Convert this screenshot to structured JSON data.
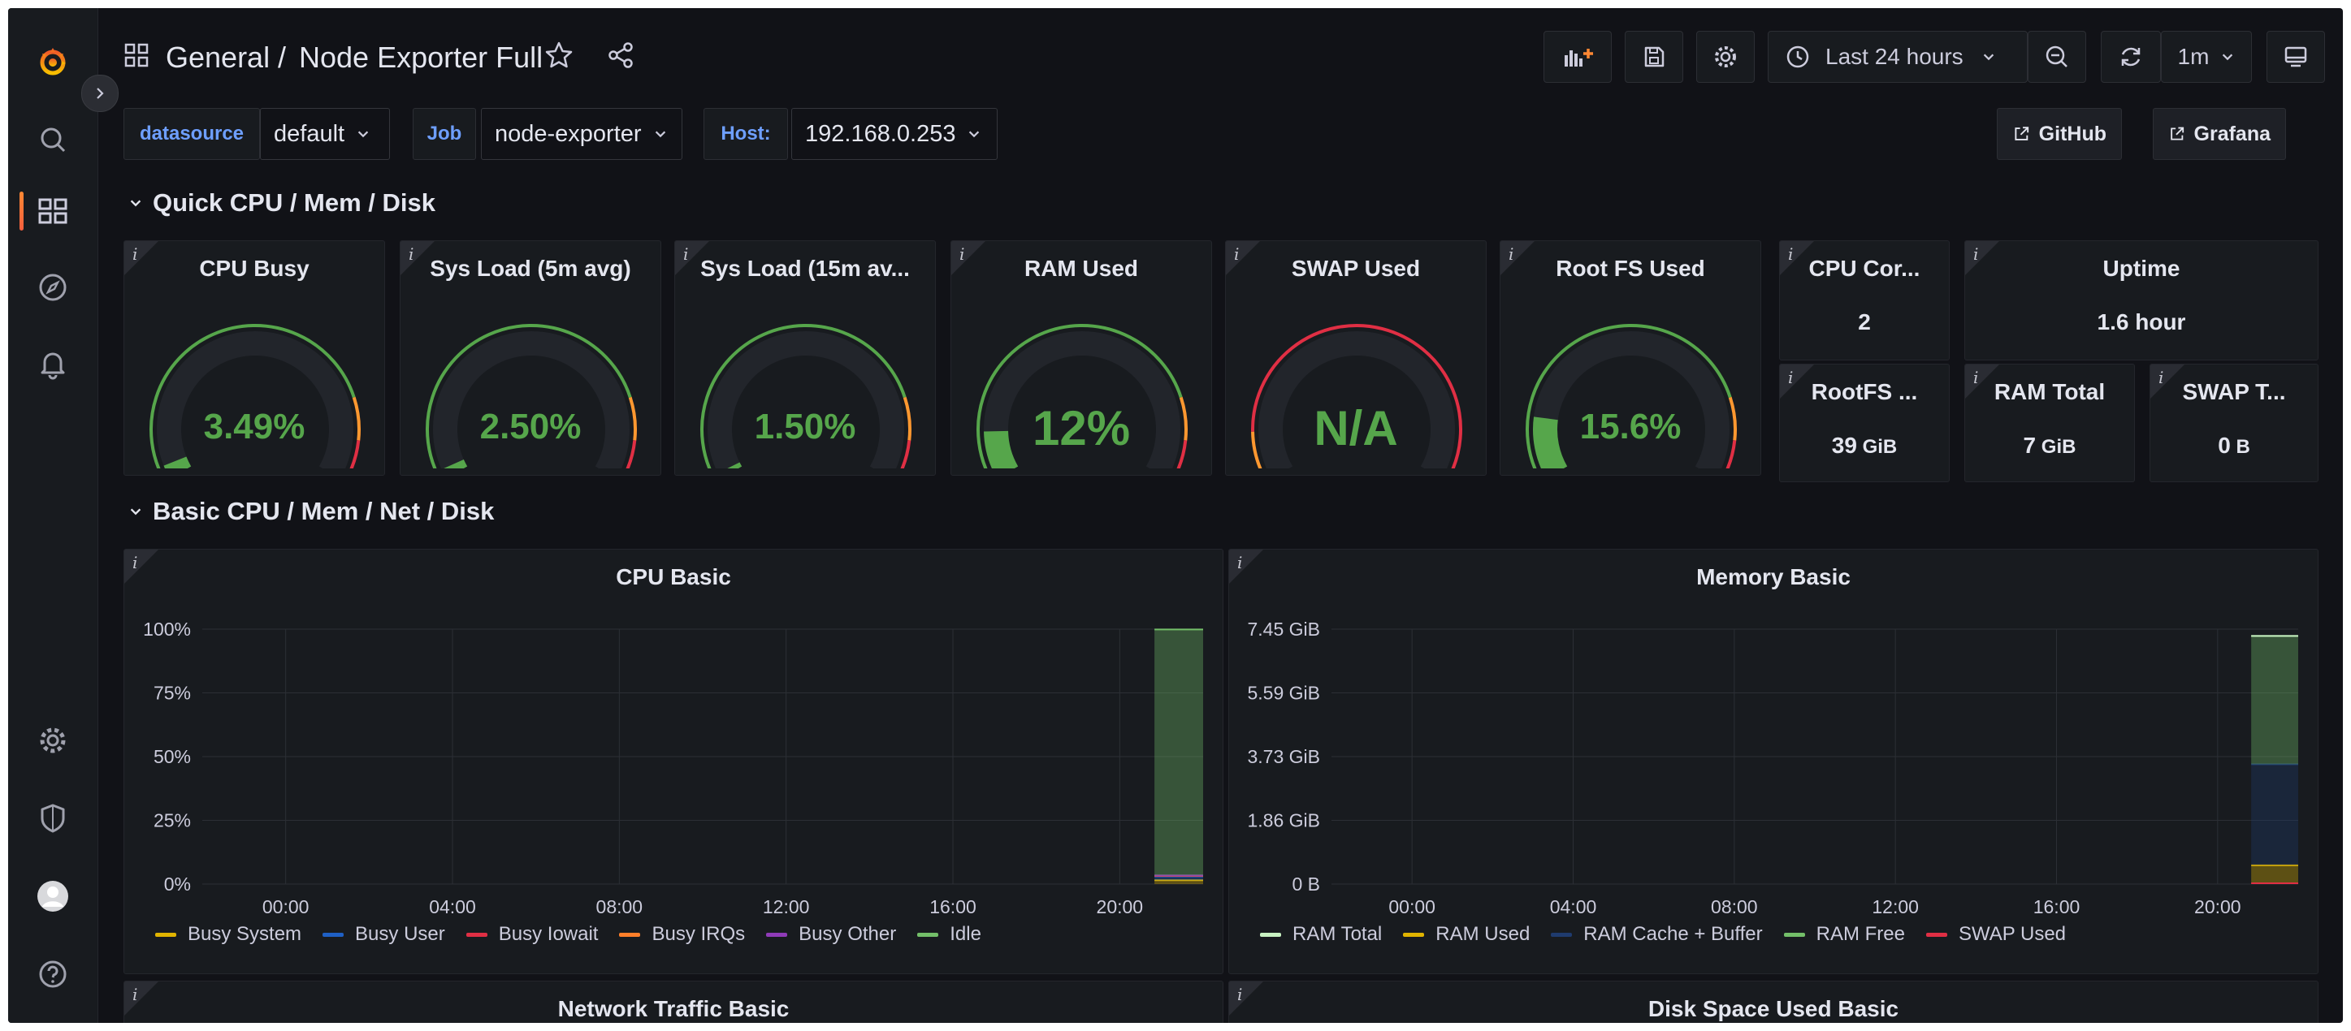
{
  "header": {
    "folder": "General",
    "separator": "/",
    "dashboard_title": "Node Exporter Full",
    "time_range": "Last 24 hours",
    "refresh_interval": "1m"
  },
  "variables": [
    {
      "label": "datasource",
      "value": "default"
    },
    {
      "label": "Job",
      "value": "node-exporter"
    },
    {
      "label": "Host:",
      "value": "192.168.0.253"
    }
  ],
  "links": [
    {
      "label": "GitHub"
    },
    {
      "label": "Grafana"
    }
  ],
  "rows": {
    "quick": "Quick CPU / Mem / Disk",
    "basic": "Basic CPU / Mem / Net / Disk"
  },
  "gauges": [
    {
      "title": "CPU Busy",
      "value": "3.49%",
      "fraction": 0.0349,
      "big": false
    },
    {
      "title": "Sys Load (5m avg)",
      "value": "2.50%",
      "fraction": 0.025,
      "big": false
    },
    {
      "title": "Sys Load (15m av...",
      "value": "1.50%",
      "fraction": 0.015,
      "big": false
    },
    {
      "title": "RAM Used",
      "value": "12%",
      "fraction": 0.12,
      "big": true
    },
    {
      "title": "SWAP Used",
      "value": "N/A",
      "fraction": 0,
      "big": true
    },
    {
      "title": "Root FS Used",
      "value": "15.6%",
      "fraction": 0.156,
      "big": false
    }
  ],
  "stats": [
    {
      "title": "CPU Cor...",
      "value": "2",
      "unit": ""
    },
    {
      "title": "Uptime",
      "value": "1.6 hour",
      "unit": ""
    },
    {
      "title": "RootFS ...",
      "value": "39",
      "unit": " GiB"
    },
    {
      "title": "RAM Total",
      "value": "7",
      "unit": " GiB"
    },
    {
      "title": "SWAP T...",
      "value": "0",
      "unit": " B"
    }
  ],
  "bottom_panels": [
    "Network Traffic Basic",
    "Disk Space Used Basic"
  ],
  "colors": {
    "green": "#56a64b",
    "yellow": "#e0b400",
    "orange": "#ff7f2a",
    "red": "#e02f44",
    "blue": "#1f60c4",
    "purple": "#8f3bb8",
    "light_green": "#73bf69",
    "bg": "#111217",
    "panel": "#181b1f"
  },
  "chart_data": [
    {
      "type": "area",
      "title": "CPU Basic",
      "x_ticks": [
        "00:00",
        "04:00",
        "08:00",
        "12:00",
        "16:00",
        "20:00"
      ],
      "y_ticks": [
        "0%",
        "25%",
        "50%",
        "75%",
        "100%"
      ],
      "ylim": [
        0,
        100
      ],
      "legend_position": "bottom",
      "series": [
        {
          "name": "Busy System",
          "color": "#e0b400",
          "x": [
            "20:50",
            "22:00"
          ],
          "values": [
            1.5,
            1.5
          ]
        },
        {
          "name": "Busy User",
          "color": "#1f60c4",
          "x": [
            "20:50",
            "22:00"
          ],
          "values": [
            1.5,
            1.5
          ]
        },
        {
          "name": "Busy Iowait",
          "color": "#e02f44",
          "x": [
            "20:50",
            "22:00"
          ],
          "values": [
            0.2,
            0.2
          ]
        },
        {
          "name": "Busy IRQs",
          "color": "#ff7f2a",
          "x": [
            "20:50",
            "22:00"
          ],
          "values": [
            0.1,
            0.1
          ]
        },
        {
          "name": "Busy Other",
          "color": "#8f3bb8",
          "x": [
            "20:50",
            "22:00"
          ],
          "values": [
            0.1,
            0.1
          ]
        },
        {
          "name": "Idle",
          "color": "#73bf69",
          "x": [
            "20:50",
            "22:00"
          ],
          "values": [
            96.5,
            96.5
          ]
        }
      ]
    },
    {
      "type": "area",
      "title": "Memory Basic",
      "x_ticks": [
        "00:00",
        "04:00",
        "08:00",
        "12:00",
        "16:00",
        "20:00"
      ],
      "y_ticks": [
        "0 B",
        "1.86 GiB",
        "3.73 GiB",
        "5.59 GiB",
        "7.45 GiB"
      ],
      "ylim": [
        0,
        7.45
      ],
      "legend_position": "bottom",
      "series": [
        {
          "name": "RAM Total",
          "color": "#c8f2c2",
          "x": [
            "20:50",
            "22:00"
          ],
          "values": [
            7.25,
            7.25
          ]
        },
        {
          "name": "RAM Used",
          "color": "#e0b400",
          "x": [
            "20:50",
            "22:00"
          ],
          "values": [
            0.55,
            0.55
          ]
        },
        {
          "name": "RAM Cache + Buffer",
          "color": "#1f3b6e",
          "x": [
            "20:50",
            "22:00"
          ],
          "values": [
            2.95,
            2.95
          ]
        },
        {
          "name": "RAM Free",
          "color": "#73bf69",
          "x": [
            "20:50",
            "22:00"
          ],
          "values": [
            3.75,
            3.75
          ]
        },
        {
          "name": "SWAP Used",
          "color": "#e02f44",
          "x": [
            "20:50",
            "22:00"
          ],
          "values": [
            0,
            0
          ]
        }
      ]
    }
  ]
}
